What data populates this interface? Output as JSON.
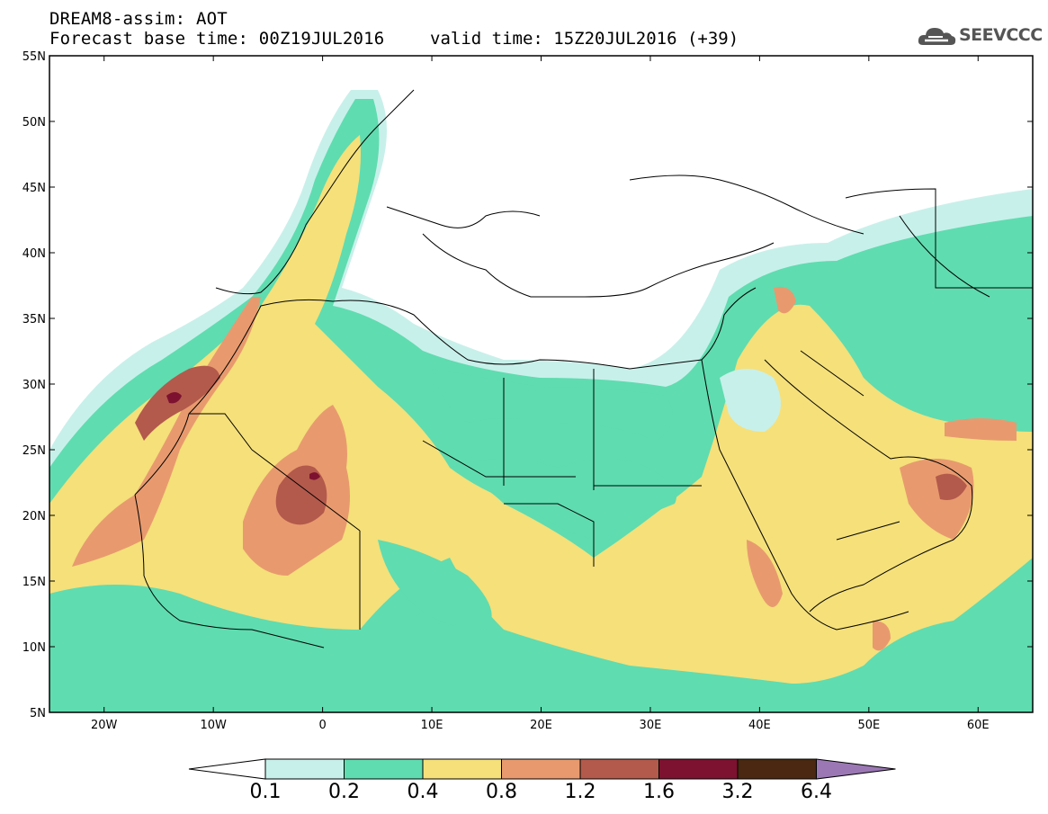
{
  "header": {
    "line1": "DREAM8-assim: AOT",
    "line2": "Forecast base time: 00Z19JUL2016",
    "valid": "valid time: 15Z20JUL2016 (+39)",
    "logo_text": "SEEVCCC"
  },
  "map": {
    "lat_labels": [
      "55N",
      "50N",
      "45N",
      "40N",
      "35N",
      "30N",
      "25N",
      "20N",
      "15N",
      "10N",
      "5N"
    ],
    "lon_labels": [
      "20W",
      "10W",
      "0",
      "10E",
      "20E",
      "30E",
      "40E",
      "50E",
      "60E"
    ],
    "lon_range": [
      -25,
      65
    ],
    "lat_range": [
      5,
      55
    ]
  },
  "legend": {
    "thresholds": [
      "0.1",
      "0.2",
      "0.4",
      "0.8",
      "1.2",
      "1.6",
      "3.2",
      "6.4"
    ],
    "colors": [
      "#ffffff",
      "#c8f0ea",
      "#5fdcb0",
      "#f5e07a",
      "#e89a6e",
      "#b35a4c",
      "#7d1230",
      "#4a2812",
      "#9b78b4"
    ]
  }
}
